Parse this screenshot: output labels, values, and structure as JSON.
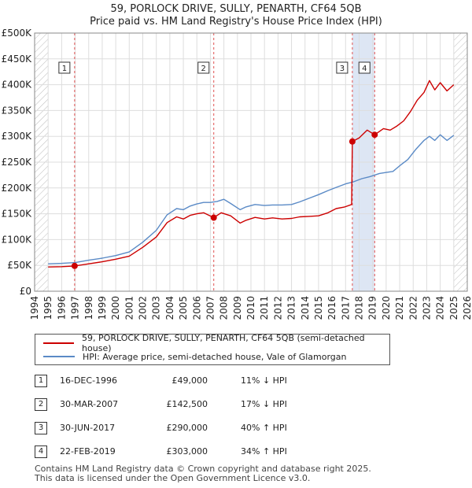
{
  "title_line1": "59, PORLOCK DRIVE, SULLY, PENARTH, CF64 5QB",
  "title_line2": "Price paid vs. HM Land Registry's House Price Index (HPI)",
  "chart_data": {
    "type": "line",
    "xlim": [
      1994,
      2026
    ],
    "ylim": [
      0,
      500000
    ],
    "y_ticks": [
      0,
      50000,
      100000,
      150000,
      200000,
      250000,
      300000,
      350000,
      400000,
      450000,
      500000
    ],
    "y_tick_labels": [
      "£0",
      "£50K",
      "£100K",
      "£150K",
      "£200K",
      "£250K",
      "£300K",
      "£350K",
      "£400K",
      "£450K",
      "£500K"
    ],
    "x_ticks": [
      1994,
      1995,
      1996,
      1997,
      1998,
      1999,
      2000,
      2001,
      2002,
      2003,
      2004,
      2005,
      2006,
      2007,
      2008,
      2009,
      2010,
      2011,
      2012,
      2013,
      2014,
      2015,
      2016,
      2017,
      2018,
      2019,
      2020,
      2021,
      2022,
      2023,
      2024,
      2025,
      2026
    ],
    "data_start": 1995.0,
    "data_end": 2025.1,
    "hatch_before": 1995.0,
    "hatch_after": 2025.0,
    "shaded_regions": [
      [
        2017.5,
        2019.15
      ]
    ],
    "series": [
      {
        "name": "59, PORLOCK DRIVE, SULLY, PENARTH, CF64 5QB (semi-detached house)",
        "color": "#cc0000",
        "x": [
          1995.0,
          1996.0,
          1996.96,
          1998.0,
          1999.0,
          2000.0,
          2001.0,
          2002.0,
          2003.0,
          2003.8,
          2004.5,
          2005.0,
          2005.5,
          2006.0,
          2006.5,
          2007.25,
          2007.8,
          2008.5,
          2009.2,
          2009.6,
          2010.3,
          2011.0,
          2011.6,
          2012.3,
          2013.0,
          2013.6,
          2014.3,
          2015.0,
          2015.7,
          2016.3,
          2016.9,
          2017.45,
          2017.5,
          2018.0,
          2018.6,
          2019.15,
          2019.8,
          2020.3,
          2020.8,
          2021.3,
          2021.8,
          2022.3,
          2022.8,
          2023.2,
          2023.6,
          2024.0,
          2024.5,
          2025.0
        ],
        "y": [
          47000,
          47500,
          49000,
          53000,
          57000,
          62000,
          68000,
          85000,
          105000,
          133000,
          144000,
          140000,
          147000,
          150000,
          152000,
          142500,
          152000,
          146000,
          132000,
          137000,
          143000,
          140000,
          142000,
          140000,
          141000,
          144000,
          145000,
          146000,
          152000,
          160000,
          163000,
          168000,
          290000,
          297000,
          312000,
          303000,
          315000,
          312000,
          320000,
          330000,
          348000,
          370000,
          385000,
          408000,
          390000,
          404000,
          388000,
          400000
        ]
      },
      {
        "name": "HPI: Average price, semi-detached house, Vale of Glamorgan",
        "color": "#5a8ac6",
        "x": [
          1995.0,
          1996.0,
          1997.0,
          1998.0,
          1999.0,
          2000.0,
          2001.0,
          2002.0,
          2003.0,
          2003.8,
          2004.5,
          2005.0,
          2005.5,
          2006.0,
          2006.5,
          2007.0,
          2007.5,
          2008.0,
          2008.5,
          2009.2,
          2009.6,
          2010.3,
          2011.0,
          2011.6,
          2012.3,
          2013.0,
          2013.6,
          2014.3,
          2015.0,
          2015.7,
          2016.3,
          2017.0,
          2017.6,
          2018.2,
          2018.8,
          2019.5,
          2020.0,
          2020.5,
          2021.0,
          2021.6,
          2022.2,
          2022.8,
          2023.2,
          2023.6,
          2024.0,
          2024.5,
          2025.0
        ],
        "y": [
          53000,
          54000,
          55500,
          60000,
          64000,
          69000,
          76000,
          95000,
          118000,
          148000,
          160000,
          158000,
          165000,
          169000,
          172000,
          172000,
          174000,
          178000,
          170000,
          158000,
          163000,
          168000,
          166000,
          167000,
          167000,
          168000,
          173000,
          180000,
          187000,
          195000,
          201000,
          208000,
          212000,
          218000,
          222000,
          228000,
          230000,
          232000,
          243000,
          255000,
          275000,
          292000,
          300000,
          292000,
          303000,
          292000,
          302000
        ]
      }
    ],
    "transactions": [
      {
        "label": "1",
        "x": 1996.96,
        "y": 49000
      },
      {
        "label": "2",
        "x": 2007.25,
        "y": 142500
      },
      {
        "label": "3",
        "x": 2017.5,
        "y": 290000
      },
      {
        "label": "4",
        "x": 2019.15,
        "y": 303000
      }
    ]
  },
  "legend": {
    "property": "59, PORLOCK DRIVE, SULLY, PENARTH, CF64 5QB (semi-detached house)",
    "hpi": "HPI: Average price, semi-detached house, Vale of Glamorgan"
  },
  "sales": [
    {
      "num": "1",
      "date": "16-DEC-1996",
      "price": "£49,000",
      "hpi": "11% ↓ HPI"
    },
    {
      "num": "2",
      "date": "30-MAR-2007",
      "price": "£142,500",
      "hpi": "17% ↓ HPI"
    },
    {
      "num": "3",
      "date": "30-JUN-2017",
      "price": "£290,000",
      "hpi": "40% ↑ HPI"
    },
    {
      "num": "4",
      "date": "22-FEB-2019",
      "price": "£303,000",
      "hpi": "34% ↑ HPI"
    }
  ],
  "footer_line1": "Contains HM Land Registry data © Crown copyright and database right 2025.",
  "footer_line2": "This data is licensed under the Open Government Licence v3.0.",
  "colors": {
    "property": "#cc0000",
    "hpi": "#5a8ac6",
    "shade": "#dde6f4",
    "grid": "#dddddd"
  }
}
